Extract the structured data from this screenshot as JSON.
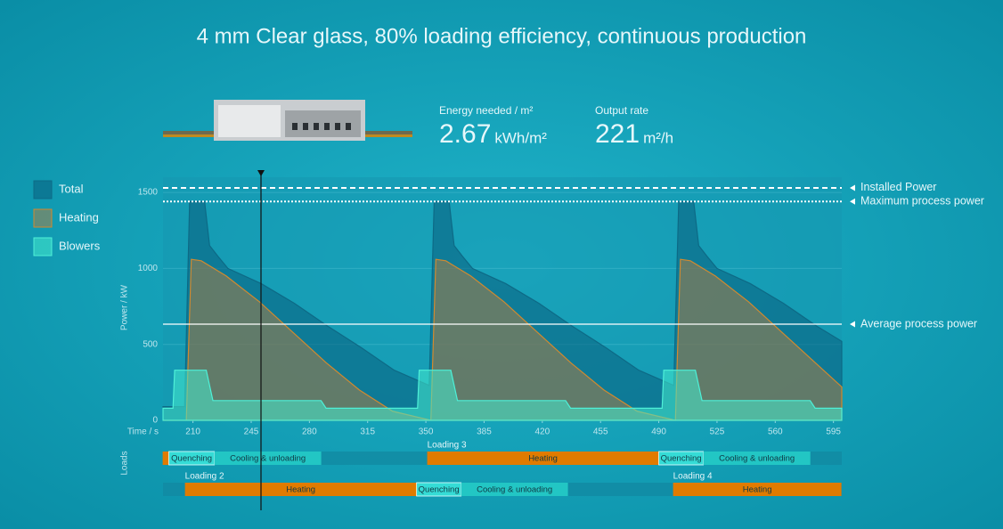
{
  "chart_data": {
    "type": "area",
    "title": "4 mm Clear glass, 80% loading efficiency, continuous production",
    "stats": [
      {
        "label": "Energy needed / m²",
        "value": 2.67,
        "unit": "kWh/m²"
      },
      {
        "label": "Output rate",
        "value": 221,
        "unit": "m²/h"
      }
    ],
    "xlabel": "Time / s",
    "ylabel": "Power / kW",
    "xlim": [
      192,
      600
    ],
    "ylim": [
      0,
      1600
    ],
    "xticks": [
      210,
      245,
      280,
      315,
      350,
      385,
      420,
      455,
      490,
      525,
      560,
      595
    ],
    "yticks": [
      0,
      500,
      1000,
      1500
    ],
    "series": [
      {
        "name": "Total",
        "color": "#0d6a86",
        "x": [
          192,
          205,
          208,
          217,
          220,
          225,
          231,
          251,
          271,
          291,
          311,
          331,
          352,
          355,
          364,
          367,
          372,
          378,
          398,
          418,
          438,
          458,
          478,
          499,
          502,
          511,
          514,
          519,
          525,
          545,
          565,
          585,
          600
        ],
        "values": [
          90,
          90,
          1440,
          1440,
          1150,
          1080,
          1000,
          900,
          770,
          620,
          480,
          330,
          230,
          1440,
          1440,
          1150,
          1080,
          1000,
          900,
          770,
          620,
          480,
          330,
          230,
          1440,
          1440,
          1150,
          1080,
          1000,
          900,
          770,
          620,
          520
        ]
      },
      {
        "name": "Heating",
        "color": "#d08a30",
        "x": [
          192,
          206,
          209,
          215,
          230,
          250,
          270,
          290,
          310,
          330,
          353,
          356,
          362,
          377,
          397,
          417,
          437,
          457,
          477,
          500,
          503,
          509,
          524,
          544,
          564,
          584,
          600
        ],
        "values": [
          0,
          0,
          1060,
          1050,
          950,
          780,
          580,
          380,
          200,
          60,
          0,
          1060,
          1050,
          950,
          780,
          580,
          380,
          200,
          60,
          0,
          1060,
          1050,
          950,
          780,
          580,
          380,
          220
        ]
      },
      {
        "name": "Blowers",
        "color": "#4ef0d8",
        "x": [
          192,
          198,
          199,
          218,
          222,
          287,
          290,
          345,
          346,
          365,
          369,
          434,
          437,
          492,
          493,
          512,
          516,
          581,
          584,
          600
        ],
        "values": [
          80,
          80,
          330,
          330,
          130,
          130,
          80,
          80,
          330,
          330,
          130,
          130,
          80,
          80,
          330,
          330,
          130,
          130,
          80,
          80
        ]
      }
    ],
    "reference_lines": [
      {
        "label": "Installed Power",
        "value": 1530,
        "style": "dashed"
      },
      {
        "label": "Maximum process power",
        "value": 1440,
        "style": "dotted"
      },
      {
        "label": "Average process power",
        "value": 633,
        "style": "solid"
      }
    ],
    "loads_label": "Loads",
    "loads": [
      [
        {
          "label": null,
          "kind": "heating",
          "start": 191.8,
          "end": 195.5
        },
        {
          "label": "Quenching",
          "kind": "quenching",
          "start": 195.5,
          "end": 222.9
        },
        {
          "label": "Cooling & unloading",
          "kind": "cooling",
          "start": 222.9,
          "end": 287.1
        },
        {
          "label": "Heating",
          "kind": "heating",
          "start": 350.8,
          "end": 490,
          "loading": "Loading 3"
        },
        {
          "label": "Quenching",
          "kind": "quenching",
          "start": 490,
          "end": 516.8
        },
        {
          "label": "Cooling & unloading",
          "kind": "cooling",
          "start": 516.8,
          "end": 581.1
        }
      ],
      [
        {
          "label": "Heating",
          "kind": "heating",
          "start": 205.2,
          "end": 344.4,
          "loading": "Loading 2"
        },
        {
          "label": "Quenching",
          "kind": "quenching",
          "start": 344.4,
          "end": 371.2
        },
        {
          "label": "Cooling & unloading",
          "kind": "cooling",
          "start": 371.2,
          "end": 435.4
        },
        {
          "label": "Heating",
          "kind": "heating",
          "start": 498.6,
          "end": 599.8,
          "loading": "Loading 4"
        }
      ]
    ]
  }
}
